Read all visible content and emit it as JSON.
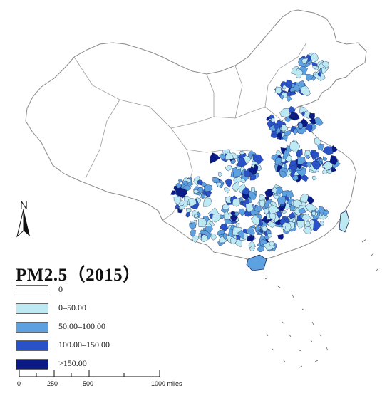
{
  "title": "PM2.5（2015）",
  "north_label": "N",
  "legend": {
    "items": [
      {
        "label": "0",
        "color": "#ffffff"
      },
      {
        "label": "0–50.00",
        "color": "#bde9f2"
      },
      {
        "label": "50.00–100.00",
        "color": "#5ea1e0"
      },
      {
        "label": "100.00–150.00",
        "color": "#2a52c8"
      },
      {
        "label": ">150.00",
        "color": "#0a1a86"
      }
    ]
  },
  "scalebar": {
    "ticks": [
      "0",
      "250",
      "500",
      "1000 miles"
    ]
  },
  "colors": {
    "outline": "#8a8a8a",
    "county_border": "#1c2a55"
  }
}
